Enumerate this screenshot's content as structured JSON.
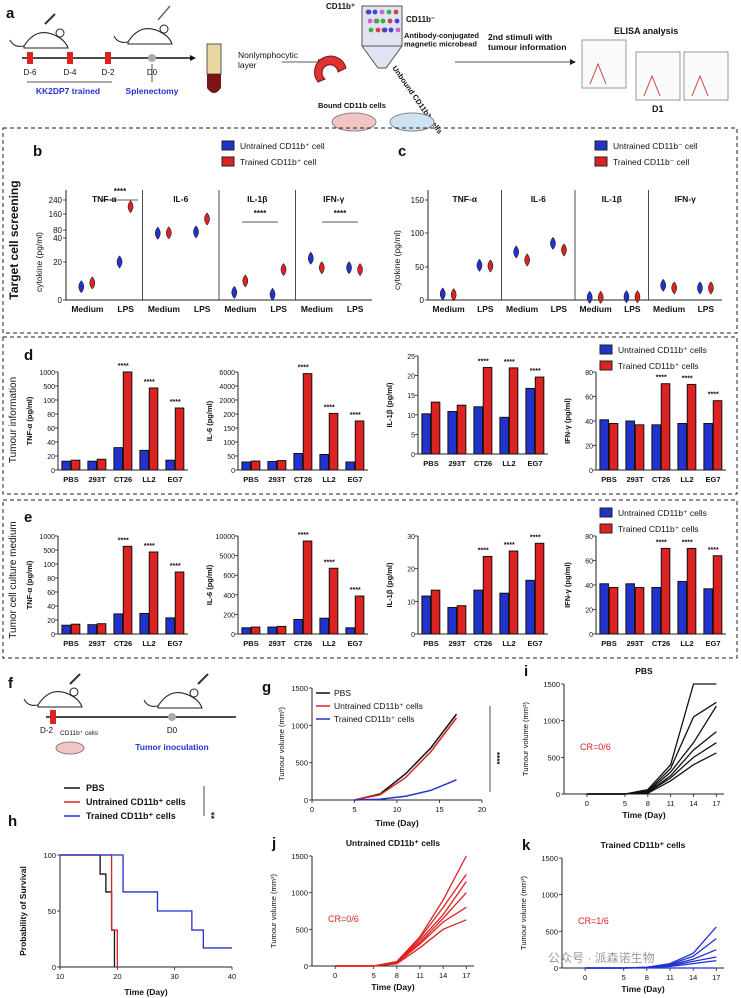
{
  "colors": {
    "blue": "#2233cc",
    "red": "#dd2222",
    "black": "#111111",
    "axis": "#222222"
  },
  "panel_a": {
    "letter": "a",
    "days": [
      "D-6",
      "D-4",
      "D-2",
      "D0"
    ],
    "trained": "KK2DP7 trained",
    "splenectomy": "Splenectomy",
    "nonlymph": "Nonlymphocytic\nlayer",
    "cd11b_pos": "CD11b⁺",
    "cd11b_neg": "CD11b⁻",
    "microbead": "Antibody-conjugated\nmagnetic microbead",
    "unbound": "Unbound CD11b⁺ cells",
    "bound": "Bound CD11b cells",
    "stimuli": "2nd stimuli with\ntumour information",
    "elisa": "ELISA analysis",
    "d1": "D1"
  },
  "section_titles": {
    "screen": "Target cell screening",
    "tumour": "Tumour information",
    "medium": "Tumor cell culture medium"
  },
  "panel_b": {
    "letter": "b",
    "legend": [
      "Untrained CD11b⁺ cell",
      "Trained CD11b⁺ cell"
    ],
    "ylabel": "cytokine (pg/ml)",
    "yticks": [
      "240",
      "160",
      "80",
      "40",
      "20",
      "0"
    ],
    "groups": [
      "TNF-α",
      "IL-6",
      "IL-1β",
      "IFN-γ"
    ],
    "xlabels": [
      "Medium",
      "LPS"
    ],
    "sig": "****",
    "chart_data": {
      "type": "violin",
      "note": "approx. positions",
      "series": [
        {
          "name": "Untrained CD11b⁺ cell",
          "values": {
            "TNF-α": [
              7,
              20
            ],
            "IL-6": [
              65,
              72
            ],
            "IL-1β": [
              4,
              3
            ],
            "IFN-γ": [
              22,
              17
            ]
          }
        },
        {
          "name": "Trained CD11b⁺ cell",
          "values": {
            "TNF-α": [
              9,
              205
            ],
            "IL-6": [
              67,
              140
            ],
            "IL-1β": [
              10,
              16
            ],
            "IFN-γ": [
              17,
              16
            ]
          }
        }
      ]
    }
  },
  "panel_c": {
    "letter": "c",
    "legend": [
      "Untrained CD11b⁻ cell",
      "Trained CD11b⁻ cell"
    ],
    "ylabel": "cytokine (pg/ml)",
    "yticks": [
      "150",
      "100",
      "50",
      "0"
    ],
    "groups": [
      "TNF-α",
      "IL-6",
      "IL-1β",
      "IFN-γ"
    ],
    "xlabels": [
      "Medium",
      "LPS"
    ],
    "chart_data": {
      "type": "violin",
      "series": [
        {
          "name": "Untrained CD11b⁻ cell",
          "values": {
            "TNF-α": [
              9,
              52
            ],
            "IL-6": [
              72,
              85
            ],
            "IL-1β": [
              4,
              5
            ],
            "IFN-γ": [
              22,
              18
            ]
          }
        },
        {
          "name": "Trained CD11b⁻ cell",
          "values": {
            "TNF-α": [
              8,
              51
            ],
            "IL-6": [
              60,
              75
            ],
            "IL-1β": [
              4,
              5
            ],
            "IFN-γ": [
              18,
              18
            ]
          }
        }
      ]
    }
  },
  "panel_d": {
    "letter": "d",
    "legend": [
      "Untrained CD11b⁺ cells",
      "Trained CD11b⁺ cells"
    ],
    "cats": [
      "PBS",
      "293T",
      "CT26",
      "LL2",
      "EG7"
    ],
    "charts": [
      {
        "ylabel": "TNF-α (pg/ml)",
        "yticks": [
          "1000",
          "500",
          "100",
          "80",
          "60",
          "40",
          "20",
          "0"
        ],
        "blue": [
          8,
          8,
          52,
          40,
          10
        ],
        "red": [
          10,
          12,
          1000,
          700,
          400
        ]
      },
      {
        "ylabel": "IL-6 (pg/ml)",
        "yticks": [
          "6000",
          "4000",
          "2000",
          "200",
          "150",
          "100",
          "50",
          "0"
        ],
        "blue": [
          40,
          45,
          170,
          150,
          40
        ],
        "red": [
          50,
          55,
          5800,
          2000,
          1500
        ]
      },
      {
        "ylabel": "IL-1β (pg/ml)",
        "yticks": [
          "25",
          "20",
          "15",
          "10",
          "5",
          "0"
        ],
        "blue": [
          4.2,
          4.7,
          5.8,
          3.5,
          11.2
        ],
        "red": [
          7,
          6.2,
          19.5,
          19.3,
          15.4
        ]
      },
      {
        "ylabel": "IFN-γ (pg/ml)",
        "yticks": [
          "80",
          "60",
          "40",
          "20",
          "0"
        ],
        "blue": [
          21,
          20,
          17,
          18,
          18
        ],
        "red": [
          18,
          17,
          62,
          61,
          40
        ]
      }
    ]
  },
  "panel_e": {
    "letter": "e",
    "legend": [
      "Untrained CD11b⁺ cells",
      "Trained CD11b⁺ cells"
    ],
    "cats": [
      "PBS",
      "293T",
      "CT26",
      "LL2",
      "EG7"
    ],
    "charts": [
      {
        "ylabel": "TNF-α (pg/ml)",
        "yticks": [
          "1000",
          "500",
          "100",
          "80",
          "60",
          "40",
          "20",
          "0"
        ],
        "blue": [
          8,
          9,
          42,
          44,
          27
        ],
        "red": [
          10,
          11,
          800,
          700,
          400
        ]
      },
      {
        "ylabel": "IL-6 (pg/ml)",
        "yticks": [
          "10000",
          "5000",
          "600",
          "400",
          "200",
          "0"
        ],
        "blue": [
          40,
          50,
          220,
          260,
          40
        ],
        "red": [
          50,
          60,
          9000,
          4500,
          1500
        ]
      },
      {
        "ylabel": "IL-1β (pg/ml)",
        "yticks": [
          "30",
          "20",
          "10",
          "0"
        ],
        "blue": [
          4.5,
          2.2,
          6,
          5.2,
          9
        ],
        "red": [
          6,
          2.5,
          18.8,
          21.5,
          25.7
        ]
      },
      {
        "ylabel": "IFN-γ (pg/ml)",
        "yticks": [
          "80",
          "60",
          "40",
          "20",
          "0"
        ],
        "blue": [
          21,
          21,
          18,
          23,
          17
        ],
        "red": [
          18,
          18,
          61,
          61,
          51
        ]
      }
    ]
  },
  "panel_f": {
    "letter": "f",
    "d2": "D-2",
    "d0": "D0",
    "cells": "CD11b⁺ cells",
    "inoculation": "Tumor inoculation"
  },
  "panel_g": {
    "letter": "g",
    "legend": [
      "PBS",
      "Untrained CD11b⁺ cells",
      "Trained CD11b⁺ cells"
    ],
    "ylabel": "Tumour volume (mm³)",
    "xlabel": "Time (Day)",
    "sig": "****",
    "xticks": [
      "0",
      "5",
      "10",
      "15",
      "20"
    ],
    "yticks": [
      "0",
      "500",
      "1000",
      "1500"
    ],
    "chart_data": {
      "type": "line",
      "x": [
        5,
        8,
        11,
        14,
        17
      ],
      "series": [
        {
          "name": "PBS",
          "values": [
            0,
            80,
            350,
            700,
            1150
          ]
        },
        {
          "name": "Untrained CD11b⁺ cells",
          "values": [
            0,
            70,
            300,
            650,
            1100
          ]
        },
        {
          "name": "Trained CD11b⁺ cells",
          "values": [
            0,
            10,
            50,
            130,
            270
          ]
        }
      ]
    }
  },
  "panel_h": {
    "letter": "h",
    "legend": [
      "PBS",
      "Untrained CD11b⁺ cells",
      "Trained CD11b⁺ cells"
    ],
    "sig": "**",
    "ylabel": "Probability of Survival",
    "xlabel": "Time (Day)",
    "xticks": [
      "10",
      "20",
      "30",
      "40"
    ],
    "yticks": [
      "0",
      "50",
      "100"
    ]
  },
  "panel_i": {
    "letter": "i",
    "title": "PBS",
    "cr": "CR=0/6",
    "ylabel": "Tumour volume (mm³)",
    "xlabel": "Time (Day)",
    "xticks": [
      "0",
      "5",
      "8",
      "11",
      "14",
      "17"
    ],
    "yticks": [
      "0",
      "500",
      "1000",
      "1500"
    ]
  },
  "panel_j": {
    "letter": "j",
    "title": "Untrained CD11b⁺ cells",
    "cr": "CR=0/6",
    "ylabel": "Tumour volume (mm³)",
    "xlabel": "Time (Day)",
    "xticks": [
      "0",
      "5",
      "8",
      "11",
      "14",
      "17"
    ],
    "yticks": [
      "0",
      "500",
      "1000",
      "1500"
    ]
  },
  "panel_k": {
    "letter": "k",
    "title": "Trained CD11b⁺ cells",
    "cr": "CR=1/6",
    "ylabel": "Tumour volume (mm³)",
    "xlabel": "Time (Day)",
    "xticks": [
      "0",
      "5",
      "8",
      "11",
      "14",
      "17"
    ],
    "yticks": [
      "0",
      "500",
      "1000",
      "1500"
    ]
  },
  "watermark": "公众号 · 派森诺生物"
}
